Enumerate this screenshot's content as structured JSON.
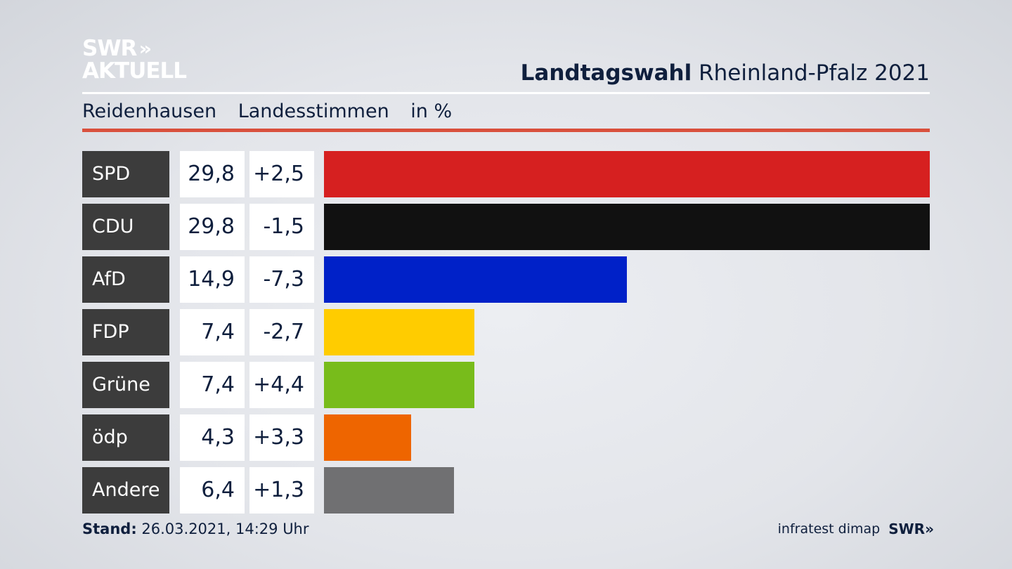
{
  "logo": {
    "line1": "SWR",
    "chevrons": "»",
    "line2": "AKTUELL"
  },
  "header": {
    "title_bold": "Landtagswahl",
    "title_rest": "Rheinland-Pfalz 2021"
  },
  "subtitle": {
    "place": "Reidenhausen",
    "type": "Landesstimmen",
    "unit": "in %"
  },
  "chart_data": {
    "type": "bar",
    "orientation": "horizontal",
    "categories": [
      "SPD",
      "CDU",
      "AfD",
      "FDP",
      "Grüne",
      "ödp",
      "Andere"
    ],
    "values": [
      29.8,
      29.8,
      14.9,
      7.4,
      7.4,
      4.3,
      6.4
    ],
    "value_labels": [
      "29,8",
      "29,8",
      "14,9",
      "7,4",
      "7,4",
      "4,3",
      "6,4"
    ],
    "diffs": [
      "+2,5",
      "-1,5",
      "-7,3",
      "-2,7",
      "+4,4",
      "+3,3",
      "+1,3"
    ],
    "colors": [
      "#d62020",
      "#111111",
      "#0021c8",
      "#ffcc00",
      "#78bc1b",
      "#ee6500",
      "#707072"
    ],
    "xlim": [
      0,
      29.8
    ],
    "grid": false,
    "legend": "none"
  },
  "footer": {
    "stand_label": "Stand:",
    "stand_value": "26.03.2021, 14:29 Uhr",
    "source": "infratest dimap",
    "brand": "SWR",
    "brand_chevrons": "»"
  }
}
